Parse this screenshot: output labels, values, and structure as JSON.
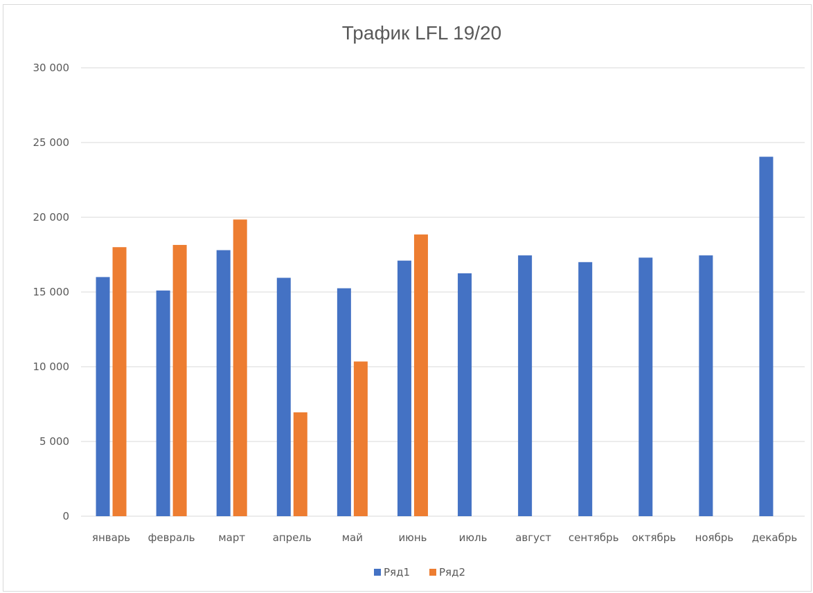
{
  "chart_data": {
    "type": "bar",
    "title": "Трафик LFL 19/20",
    "xlabel": "",
    "ylabel": "",
    "ylim": [
      0,
      30000
    ],
    "yticks": [
      0,
      5000,
      10000,
      15000,
      20000,
      25000,
      30000
    ],
    "ytick_labels": [
      "0",
      "5 000",
      "10 000",
      "15 000",
      "20 000",
      "25 000",
      "30 000"
    ],
    "grid": true,
    "legend_position": "bottom",
    "categories": [
      "январь",
      "февраль",
      "март",
      "апрель",
      "май",
      "июнь",
      "июль",
      "август",
      "сентябрь",
      "октябрь",
      "ноябрь",
      "декабрь"
    ],
    "series": [
      {
        "name": "Ряд1",
        "color": "#4472c4",
        "values": [
          16000,
          15100,
          17800,
          15950,
          15250,
          17100,
          16250,
          17450,
          17000,
          17300,
          17450,
          24050
        ]
      },
      {
        "name": "Ряд2",
        "color": "#ed7d31",
        "values": [
          18000,
          18150,
          19850,
          6950,
          10350,
          18850,
          null,
          null,
          null,
          null,
          null,
          null
        ]
      }
    ]
  }
}
